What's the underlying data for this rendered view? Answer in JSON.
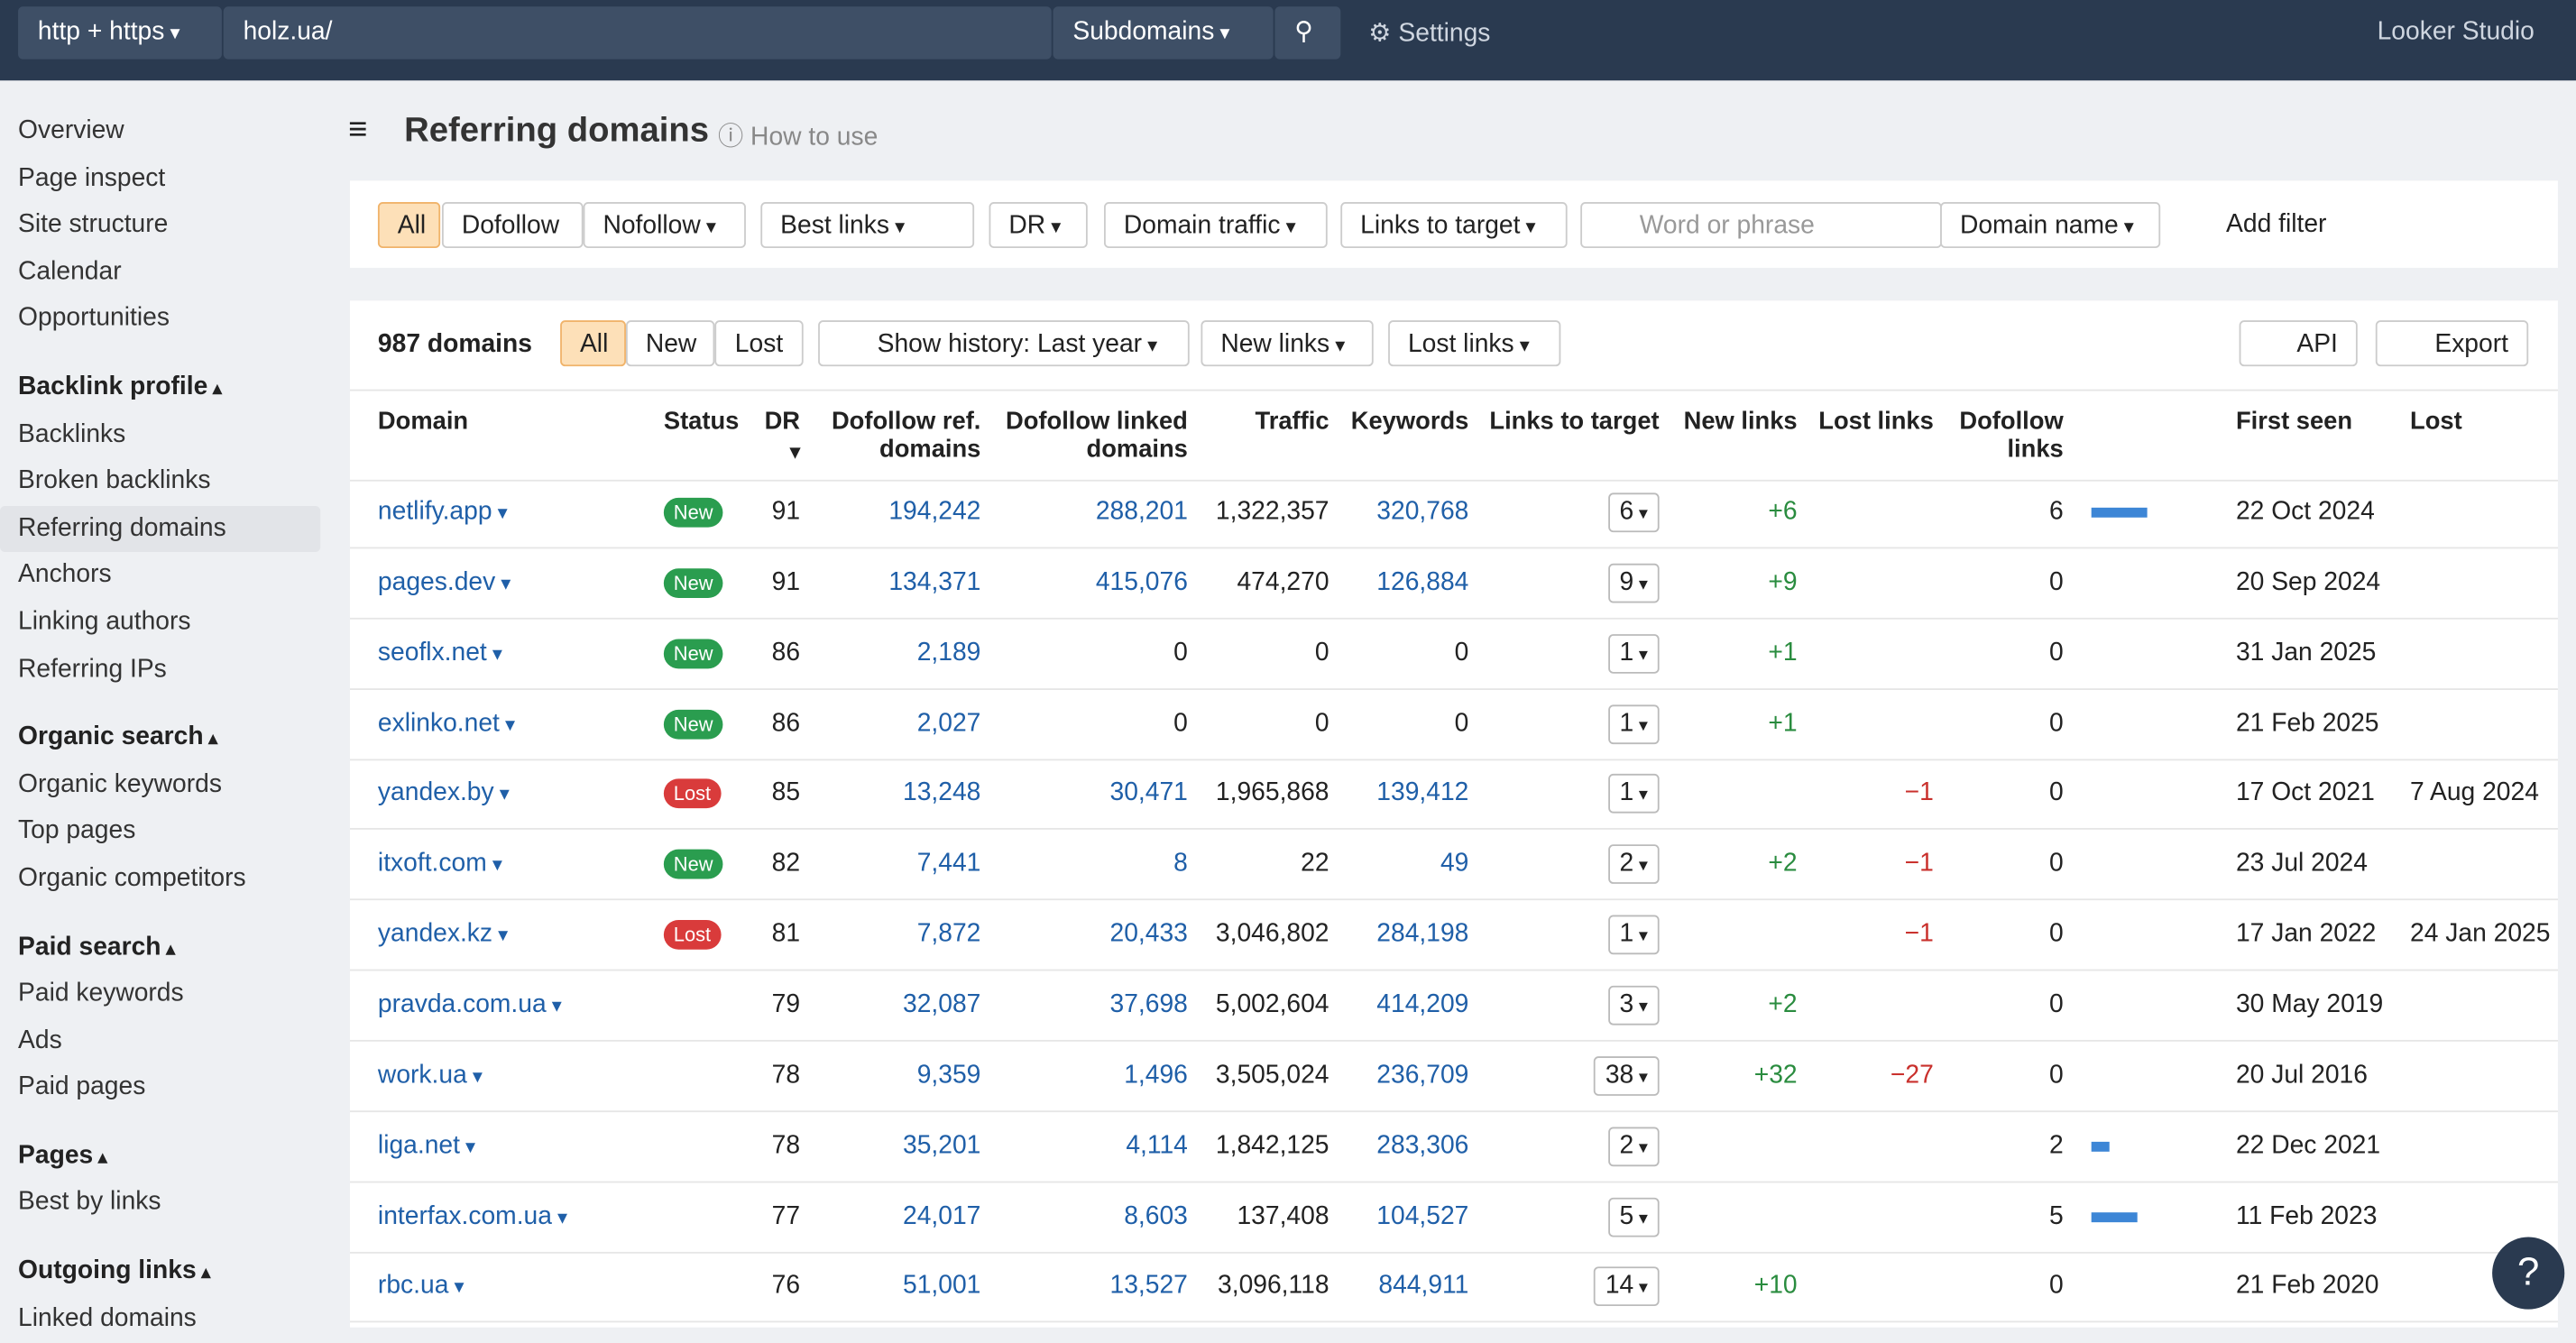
{
  "topbar": {
    "protocol": "http + https",
    "url": "holz.ua/",
    "mode": "Subdomains",
    "settings": "Settings",
    "looker": "Looker Studio"
  },
  "sidebar": {
    "items": [
      "Overview",
      "Page inspect",
      "Site structure",
      "Calendar",
      "Opportunities"
    ],
    "groups": [
      {
        "title": "Backlink profile",
        "items": [
          "Backlinks",
          "Broken backlinks",
          "Referring domains",
          "Anchors",
          "Linking authors",
          "Referring IPs"
        ]
      },
      {
        "title": "Organic search",
        "items": [
          "Organic keywords",
          "Top pages",
          "Organic competitors"
        ]
      },
      {
        "title": "Paid search",
        "items": [
          "Paid keywords",
          "Ads",
          "Paid pages"
        ]
      },
      {
        "title": "Pages",
        "items": [
          "Best by links"
        ]
      },
      {
        "title": "Outgoing links",
        "items": [
          "Linked domains"
        ]
      }
    ],
    "active": "Referring domains"
  },
  "header": {
    "title": "Referring domains",
    "help": "How to use"
  },
  "filters": {
    "buttons": [
      "All",
      "Dofollow",
      "Nofollow",
      "Best links",
      "DR",
      "Domain traffic",
      "Links to target"
    ],
    "search": "Word or phrase",
    "field": "Domain name",
    "add": "Add filter"
  },
  "toolbar": {
    "count": "987 domains",
    "tabs": [
      "All",
      "New",
      "Lost"
    ],
    "history": "Show history: Last year",
    "new_links": "New links",
    "lost_links": "Lost links",
    "api": "API",
    "export": "Export"
  },
  "table": {
    "columns": [
      "Domain",
      "Status",
      "DR",
      "Dofollow ref. domains",
      "Dofollow linked domains",
      "Traffic",
      "Keywords",
      "Links to target",
      "New links",
      "Lost links",
      "Dofollow links",
      "First seen",
      "Lost"
    ],
    "rows": [
      [
        "netlify.app",
        "New",
        91,
        "194,242",
        "288,201",
        "1,322,357",
        "320,768",
        6,
        "+6",
        null,
        6,
        "22 Oct 2024",
        null
      ],
      [
        "pages.dev",
        "New",
        91,
        "134,371",
        "415,076",
        "474,270",
        "126,884",
        9,
        "+9",
        null,
        0,
        "20 Sep 2024",
        null
      ],
      [
        "seoflx.net",
        "New",
        86,
        "2,189",
        0,
        0,
        0,
        1,
        "+1",
        null,
        0,
        "31 Jan 2025",
        null
      ],
      [
        "exlinko.net",
        "New",
        86,
        "2,027",
        0,
        0,
        0,
        1,
        "+1",
        null,
        0,
        "21 Feb 2025",
        null
      ],
      [
        "yandex.by",
        "Lost",
        85,
        "13,248",
        "30,471",
        "1,965,868",
        "139,412",
        1,
        null,
        "−1",
        0,
        "17 Oct 2021",
        "7 Aug 2024"
      ],
      [
        "itxoft.com",
        "New",
        82,
        "7,441",
        8,
        22,
        49,
        2,
        "+2",
        "−1",
        0,
        "23 Jul 2024",
        null
      ],
      [
        "yandex.kz",
        "Lost",
        81,
        "7,872",
        "20,433",
        "3,046,802",
        "284,198",
        1,
        null,
        "−1",
        0,
        "17 Jan 2022",
        "24 Jan 2025"
      ],
      [
        "pravda.com.ua",
        null,
        79,
        "32,087",
        "37,698",
        "5,002,604",
        "414,209",
        3,
        "+2",
        null,
        0,
        "30 May 2019",
        null
      ],
      [
        "work.ua",
        null,
        78,
        "9,359",
        "1,496",
        "3,505,024",
        "236,709",
        38,
        "+32",
        "−27",
        0,
        "20 Jul 2016",
        null
      ],
      [
        "liga.net",
        null,
        78,
        "35,201",
        "4,114",
        "1,842,125",
        "283,306",
        2,
        null,
        null,
        2,
        "22 Dec 2021",
        null
      ],
      [
        "interfax.com.ua",
        null,
        77,
        "24,017",
        "8,603",
        "137,408",
        "104,527",
        5,
        null,
        null,
        5,
        "11 Feb 2023",
        null
      ],
      [
        "rbc.ua",
        null,
        76,
        "51,001",
        "13,527",
        "3,096,118",
        "844,911",
        14,
        "+10",
        null,
        0,
        "21 Feb 2020",
        null
      ]
    ]
  }
}
